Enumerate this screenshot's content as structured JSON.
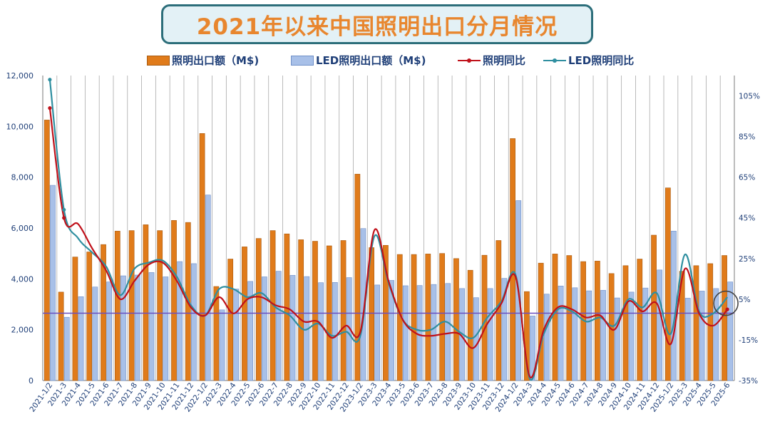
{
  "title": "2021年以来中国照明出口分月情况",
  "legend": {
    "bar1": "照明出口额（M$)",
    "bar2": "LED照明出口额（M$)",
    "line1": "照明同比",
    "line2": "LED照明同比"
  },
  "colors": {
    "bar1": "#e07b1a",
    "bar2": "#a8c0e8",
    "line1": "#c0111a",
    "line2": "#2f8fa0",
    "ref_line": "#6a4fc0",
    "title_border": "#2c6e7a",
    "title_fill": "#e3f1f6",
    "title_text": "#e8862e",
    "axis_text": "#1f3f78"
  },
  "chart_data": {
    "type": "bar",
    "categories": [
      "2021-1/2",
      "2021-3",
      "2021-4",
      "2021-5",
      "2021-6",
      "2021-7",
      "2021-8",
      "2021-9",
      "2021-10",
      "2021-11",
      "2021-12",
      "2022-1/2",
      "2022-3",
      "2022-4",
      "2022-5",
      "2022-6",
      "2022-7",
      "2022-8",
      "2022-9",
      "2022-10",
      "2022-11",
      "2022-12",
      "2023-1/2",
      "2023-3",
      "2023-4",
      "2023-5",
      "2023-6",
      "2023-7",
      "2023-8",
      "2023-9",
      "2023-10",
      "2023-11",
      "2023-12",
      "2024-1/2",
      "2024-3",
      "2024-4",
      "2024-5",
      "2024-6",
      "2024-7",
      "2024-8",
      "2024-9",
      "2024-10",
      "2024-11",
      "2024-12",
      "2025-1/2",
      "2025-3",
      "2025-4",
      "2025-5",
      "2025-6"
    ],
    "x_tick_labels": [
      "2021-1/2",
      "2021-3",
      "2021-4",
      "2021-5",
      "2021-6",
      "2021-7",
      "2021-8",
      "2021-9",
      "2021-10",
      "2021-11",
      "2021-12",
      "2022-1/2",
      "2022-3",
      "2022-4",
      "2022-5",
      "2022-6",
      "2022-7",
      "2022-8",
      "2022-9",
      "2022-10",
      "2022-11",
      "2022-12",
      "2023-1/2",
      "2023-3",
      "2023-4",
      "2023-5",
      "2023-6",
      "2023-7",
      "2023-8",
      "2023-9",
      "2023-10",
      "2023-11",
      "2023-12",
      "2024-1/2",
      "2024-3",
      "2024-4",
      "2024-5",
      "2024-6",
      "2024-7",
      "2024-8",
      "2024-9",
      "2024-10",
      "2024-11",
      "2024-12",
      "2025-1/2",
      "2025-3",
      "2025-4",
      "2025-5",
      "2025-6"
    ],
    "series": [
      {
        "name": "照明出口额（M$)",
        "kind": "bar",
        "axis": "left",
        "values": [
          10250,
          3480,
          4860,
          5060,
          5350,
          5880,
          5900,
          6130,
          5900,
          6300,
          6220,
          9720,
          3700,
          4780,
          5260,
          5590,
          5900,
          5770,
          5540,
          5480,
          5300,
          5510,
          8120,
          5230,
          5320,
          4960,
          4960,
          4980,
          5000,
          4800,
          4340,
          4930,
          5510,
          9520,
          3500,
          4620,
          4980,
          4920,
          4680,
          4700,
          4210,
          4520,
          4780,
          5720,
          7580,
          4300,
          4520,
          4600,
          4920
        ]
      },
      {
        "name": "LED照明出口额（M$)",
        "kind": "bar",
        "axis": "left",
        "values": [
          7680,
          2490,
          3300,
          3680,
          3880,
          4120,
          4150,
          4250,
          4080,
          4680,
          4600,
          7300,
          2780,
          3600,
          3900,
          4080,
          4300,
          4140,
          4090,
          3850,
          3860,
          4050,
          5980,
          3760,
          3940,
          3730,
          3740,
          3780,
          3820,
          3620,
          3260,
          3620,
          4020,
          7080,
          2540,
          3400,
          3720,
          3650,
          3530,
          3550,
          3250,
          3480,
          3640,
          4350,
          5880,
          3240,
          3520,
          3620,
          3880
        ]
      },
      {
        "name": "照明同比",
        "kind": "line",
        "axis": "right",
        "values": [
          99,
          45,
          42,
          30,
          19,
          5,
          14,
          22,
          23,
          14,
          1,
          -3,
          6,
          -2,
          5,
          6,
          2,
          0,
          -6,
          -6,
          -14,
          -8,
          -11,
          39,
          14,
          -5,
          -12,
          -13,
          -12,
          -12,
          -19,
          -7,
          3,
          16,
          -33,
          -10,
          1,
          0,
          -4,
          -3,
          -10,
          4,
          -1,
          3,
          -17,
          20,
          -2,
          -8,
          0
        ]
      },
      {
        "name": "LED照明同比",
        "kind": "line",
        "axis": "right",
        "values": [
          113,
          49,
          35,
          28,
          21,
          7,
          20,
          23,
          24,
          16,
          2,
          -3,
          10,
          10,
          6,
          8,
          1,
          -3,
          -10,
          -7,
          -13,
          -11,
          -13,
          36,
          13,
          -5,
          -10,
          -10,
          -6,
          -11,
          -14,
          -4,
          4,
          17,
          -34,
          -12,
          0,
          -1,
          -6,
          -4,
          -8,
          5,
          1,
          8,
          -12,
          27,
          -1,
          -2,
          6
        ]
      }
    ],
    "ylim_left": [
      0,
      12000
    ],
    "ylim_right": [
      -35,
      115
    ],
    "y_left_ticks": [
      "0",
      "2,000",
      "4,000",
      "6,000",
      "8,000",
      "10,000",
      "12,000"
    ],
    "y_right_ticks": [
      "-35%",
      "-15%",
      "5%",
      "25%",
      "45%",
      "65%",
      "85%",
      "105%"
    ],
    "reference_line_left_value": 2650,
    "grid": "vertical",
    "legend_position": "top"
  }
}
